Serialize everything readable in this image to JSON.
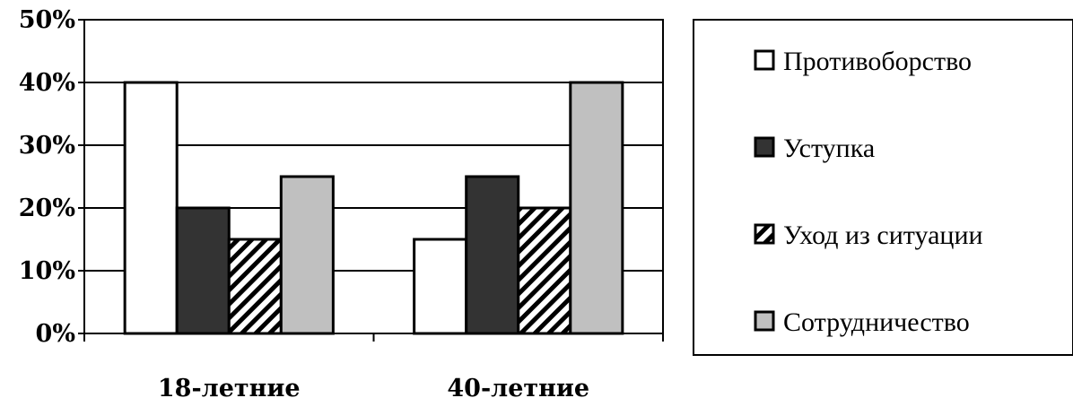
{
  "chart_data": {
    "type": "bar",
    "categories": [
      "18-летние",
      "40-летние"
    ],
    "series": [
      {
        "name": "Противоборство",
        "values": [
          40,
          15
        ],
        "fill": "white"
      },
      {
        "name": "Уступка",
        "values": [
          20,
          25
        ],
        "fill": "dark"
      },
      {
        "name": "Уход из ситуации",
        "values": [
          15,
          20
        ],
        "fill": "hatch"
      },
      {
        "name": "Сотрудничество",
        "values": [
          25,
          40
        ],
        "fill": "gray"
      }
    ],
    "y_ticks": [
      "0%",
      "10%",
      "20%",
      "30%",
      "40%",
      "50%"
    ],
    "ylim": [
      0,
      50
    ],
    "grid": true,
    "legend_position": "right"
  },
  "colors": {
    "white": "#ffffff",
    "dark": "#333333",
    "gray": "#c0c0c0",
    "stroke": "#000000"
  }
}
